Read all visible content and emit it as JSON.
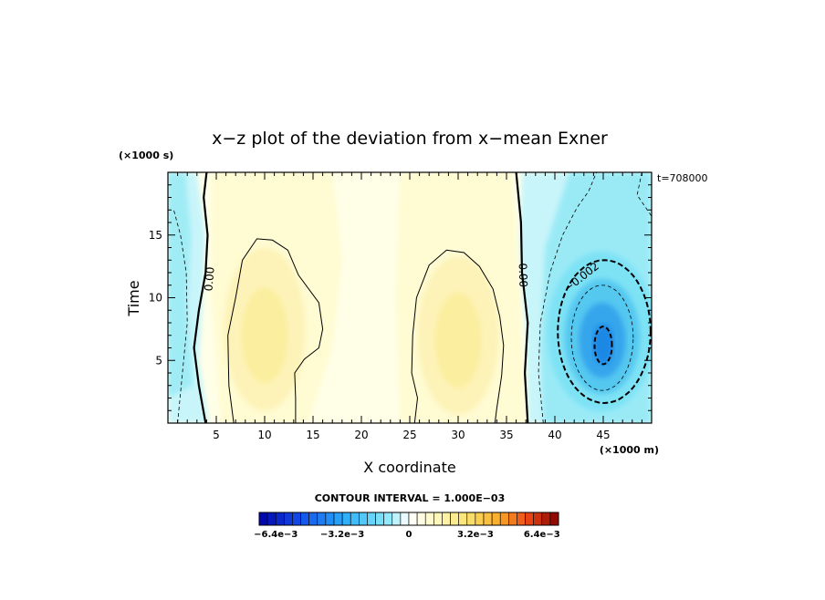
{
  "chart_data": {
    "type": "heatmap",
    "title": "x−z plot of the deviation from x−mean Exner",
    "xlabel": "X coordinate",
    "ylabel": "Time",
    "x_unit": "(×1000 m)",
    "y_unit": "(×1000 s)",
    "time_label": "t=708000",
    "xlim": [
      0,
      50
    ],
    "ylim": [
      0,
      20
    ],
    "x_ticks": [
      5,
      10,
      15,
      20,
      25,
      30,
      35,
      40,
      45
    ],
    "y_ticks": [
      5,
      10,
      15
    ],
    "contour_interval_label": "CONTOUR INTERVAL = 1.000E−03",
    "contour_labels": [
      {
        "text": "0.00",
        "x": 4.2,
        "y": 11.5,
        "angle": -85
      },
      {
        "text": "0.00",
        "x": 36.8,
        "y": 11.8,
        "angle": 88
      },
      {
        "text": "−0.002",
        "x": 42.7,
        "y": 11.7,
        "angle": -38
      }
    ],
    "colorbar": {
      "min": -0.0072,
      "max": 0.0072,
      "levels": 36,
      "tick_values": [
        -0.0064,
        -0.0032,
        0,
        0.0032,
        0.0064
      ],
      "tick_labels": [
        "−6.4e−3",
        "−3.2e−3",
        "0",
        "3.2e−3",
        "6.4e−3"
      ]
    }
  }
}
